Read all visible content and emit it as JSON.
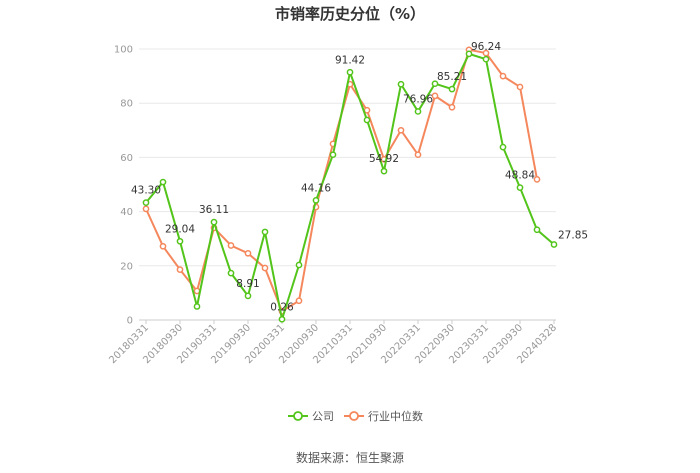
{
  "chart_data": {
    "type": "line",
    "title": "市销率历史分位（%）",
    "xlabel": "",
    "ylabel": "",
    "ylim": [
      0,
      100
    ],
    "yticks": [
      0,
      20,
      40,
      60,
      80,
      100
    ],
    "grid": "horizontal",
    "legend_position": "bottom",
    "x": [
      "20180331",
      "20180630",
      "20180930",
      "20181231",
      "20190331",
      "20190630",
      "20190930",
      "20191231",
      "20200331",
      "20200630",
      "20200930",
      "20201231",
      "20210331",
      "20210630",
      "20210930",
      "20211231",
      "20220331",
      "20220630",
      "20220930",
      "20221231",
      "20230331",
      "20230630",
      "20230930",
      "20231231",
      "20240328"
    ],
    "xtick_labels": [
      "20180331",
      "20180930",
      "20190331",
      "20190930",
      "20200331",
      "20200930",
      "20210331",
      "20210930",
      "20220331",
      "20220930",
      "20230331",
      "20230930",
      "20240328"
    ],
    "series": [
      {
        "name": "公司",
        "color": "#52c41a",
        "values": [
          43.3,
          50.9,
          29.04,
          5.0,
          36.11,
          17.3,
          8.91,
          32.5,
          0.26,
          20.3,
          44.16,
          61.0,
          91.42,
          73.8,
          54.92,
          87.0,
          76.96,
          87.2,
          85.21,
          98.2,
          96.24,
          63.8,
          48.84,
          33.3,
          27.85
        ],
        "labels": {
          "0": "43.30",
          "2": "29.04",
          "4": "36.11",
          "6": "8.91",
          "8": "0.26",
          "10": "44.16",
          "12": "91.42",
          "14": "54.92",
          "16": "76.96",
          "18": "85.21",
          "20": "96.24",
          "22": "48.84",
          "24": "27.85"
        }
      },
      {
        "name": "行业中位数",
        "color": "#f5875c",
        "values": [
          41.0,
          27.2,
          18.6,
          10.7,
          34.0,
          27.5,
          24.6,
          19.2,
          3.2,
          7.1,
          41.7,
          65.0,
          87.0,
          77.4,
          59.3,
          70.0,
          61.0,
          82.7,
          78.5,
          99.7,
          98.5,
          90.0,
          86.0,
          51.9,
          null
        ]
      }
    ]
  },
  "source": "数据来源：恒生聚源"
}
